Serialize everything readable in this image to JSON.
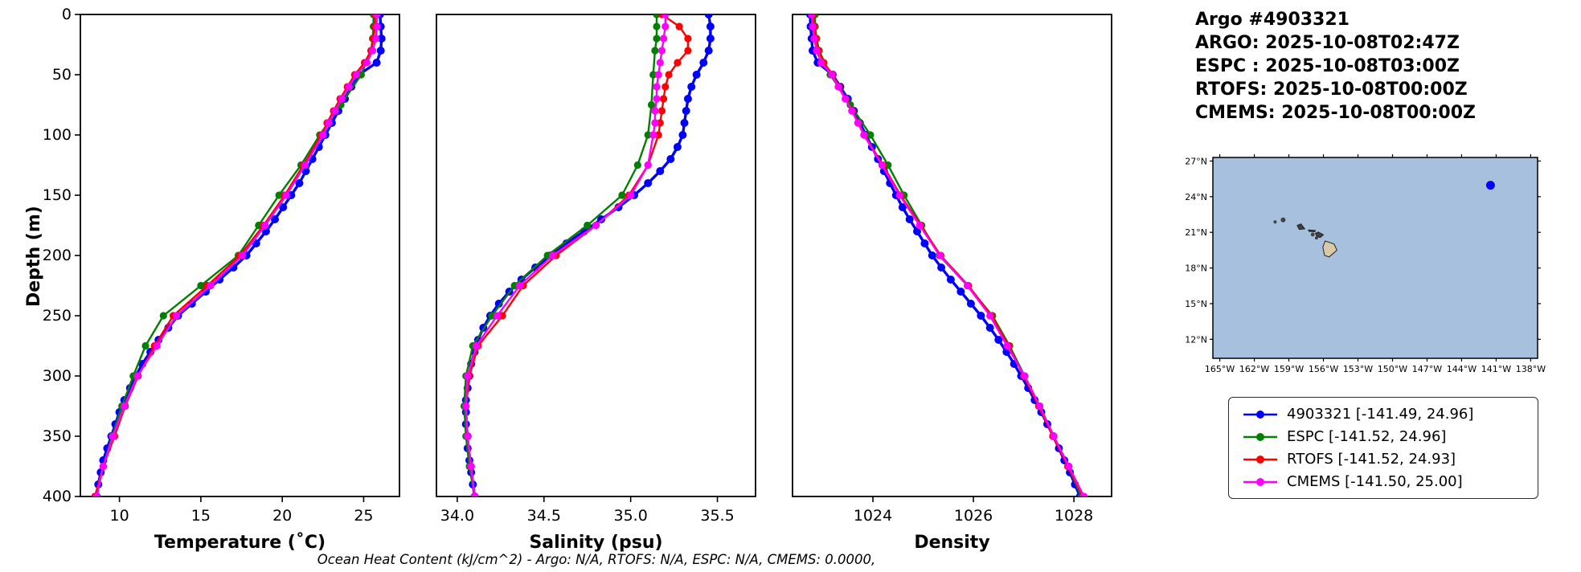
{
  "header": {
    "title": "Argo #4903321",
    "lines": [
      "ARGO: 2025-10-08T02:47Z",
      "ESPC : 2025-10-08T03:00Z",
      "RTOFS: 2025-10-08T00:00Z",
      "CMEMS: 2025-10-08T00:00Z"
    ]
  },
  "caption": "Ocean Heat Content (kJ/cm^2) - Argo: N/A,  RTOFS: N/A,  ESPC: N/A,  CMEMS: 0.0000,",
  "colors": {
    "argo": "#0000ff",
    "espc": "#008000",
    "rtofs": "#ff0000",
    "cmems": "#ff00ff"
  },
  "legend": {
    "entries": [
      {
        "name": "4903321",
        "label": "4903321 [-141.49, 24.96]",
        "color": "#0000ff"
      },
      {
        "name": "ESPC",
        "label": "ESPC [-141.52, 24.96]",
        "color": "#008000"
      },
      {
        "name": "RTOFS",
        "label": "RTOFS [-141.52, 24.93]",
        "color": "#ff0000"
      },
      {
        "name": "CMEMS",
        "label": "CMEMS [-141.50, 25.00]",
        "color": "#ff00ff"
      }
    ]
  },
  "chart_data": {
    "type": "line",
    "ylabel": "Depth (m)",
    "ylim": [
      0,
      400
    ],
    "y_inverted": true,
    "yticks": [
      0,
      50,
      100,
      150,
      200,
      250,
      300,
      350,
      400
    ],
    "ytick_labels": [
      "0",
      "50",
      "100",
      "150",
      "200",
      "250",
      "300",
      "350",
      "400"
    ],
    "grid": false,
    "legend_position": "below-map-right",
    "charts": [
      {
        "name": "temperature-profile",
        "xlabel": "Temperature (˚C)",
        "field": "temperature",
        "xlim": [
          7.6,
          27.2
        ],
        "xticks": [
          10,
          15,
          20,
          25
        ],
        "xtick_labels": [
          "10",
          "15",
          "20",
          "25"
        ]
      },
      {
        "name": "salinity-profile",
        "xlabel": "Salinity (psu)",
        "field": "salinity",
        "xlim": [
          33.88,
          35.72
        ],
        "xticks": [
          34.0,
          34.5,
          35.0,
          35.5
        ],
        "xtick_labels": [
          "34.0",
          "34.5",
          "35.0",
          "35.5"
        ]
      },
      {
        "name": "density-profile",
        "xlabel": "Density",
        "field": "density",
        "xlim": [
          1022.4,
          1028.75
        ],
        "xticks": [
          1024,
          1026,
          1028
        ],
        "xtick_labels": [
          "1024",
          "1026",
          "1028"
        ]
      }
    ],
    "series": [
      {
        "name": "4903321",
        "color": "#0000ff",
        "line_width": 3.4,
        "marker_size": 5,
        "depths": [
          0,
          10,
          20,
          30,
          40,
          50,
          60,
          70,
          80,
          90,
          100,
          110,
          120,
          130,
          140,
          150,
          160,
          170,
          180,
          190,
          200,
          210,
          220,
          230,
          240,
          250,
          260,
          270,
          280,
          290,
          300,
          310,
          320,
          330,
          340,
          350,
          360,
          370,
          380,
          390,
          400
        ],
        "temperature": [
          26.0,
          26.05,
          26.1,
          26.05,
          25.8,
          24.7,
          24.25,
          23.85,
          23.45,
          23.05,
          22.65,
          22.25,
          21.85,
          21.45,
          21.05,
          20.55,
          20.05,
          19.55,
          19.0,
          18.4,
          17.8,
          17.0,
          16.15,
          15.3,
          14.45,
          13.6,
          13.0,
          12.4,
          11.9,
          11.4,
          11.0,
          10.65,
          10.3,
          10.0,
          9.75,
          9.5,
          9.25,
          9.0,
          8.85,
          8.7,
          8.6
        ],
        "salinity": [
          35.45,
          35.46,
          35.46,
          35.45,
          35.42,
          35.38,
          35.35,
          35.33,
          35.32,
          35.31,
          35.3,
          35.27,
          35.23,
          35.17,
          35.1,
          35.02,
          34.93,
          34.83,
          34.73,
          34.63,
          34.54,
          34.45,
          34.37,
          34.3,
          34.24,
          34.19,
          34.15,
          34.12,
          34.1,
          34.08,
          34.07,
          34.06,
          34.05,
          34.05,
          34.05,
          34.06,
          34.06,
          34.07,
          34.08,
          34.09,
          34.1
        ],
        "density": [
          1022.75,
          1022.76,
          1022.78,
          1022.8,
          1022.9,
          1023.2,
          1023.35,
          1023.5,
          1023.62,
          1023.74,
          1023.86,
          1023.98,
          1024.1,
          1024.22,
          1024.34,
          1024.46,
          1024.59,
          1024.73,
          1024.88,
          1025.03,
          1025.18,
          1025.36,
          1025.55,
          1025.75,
          1025.95,
          1026.15,
          1026.33,
          1026.5,
          1026.66,
          1026.81,
          1026.95,
          1027.09,
          1027.22,
          1027.35,
          1027.47,
          1027.59,
          1027.7,
          1027.81,
          1027.92,
          1028.02,
          1028.12
        ]
      },
      {
        "name": "ESPC",
        "color": "#008000",
        "line_width": 2.4,
        "marker_size": 4.6,
        "depths": [
          0,
          10,
          20,
          30,
          50,
          75,
          100,
          125,
          150,
          175,
          200,
          225,
          250,
          275,
          300,
          325,
          350,
          375,
          400
        ],
        "temperature": [
          25.6,
          25.6,
          25.55,
          25.45,
          24.85,
          23.6,
          22.3,
          21.15,
          19.8,
          18.55,
          17.3,
          15.0,
          12.7,
          11.6,
          10.85,
          10.15,
          9.55,
          9.0,
          8.5
        ],
        "salinity": [
          35.15,
          35.15,
          35.15,
          35.14,
          35.13,
          35.12,
          35.1,
          35.04,
          34.95,
          34.75,
          34.52,
          34.33,
          34.2,
          34.09,
          34.05,
          34.04,
          34.05,
          34.07,
          34.1
        ],
        "density": [
          1022.85,
          1022.85,
          1022.88,
          1022.93,
          1023.15,
          1023.55,
          1023.95,
          1024.3,
          1024.62,
          1024.97,
          1025.32,
          1025.88,
          1026.38,
          1026.72,
          1027.02,
          1027.32,
          1027.6,
          1027.88,
          1028.15
        ]
      },
      {
        "name": "RTOFS",
        "color": "#ff0000",
        "line_width": 2.4,
        "marker_size": 4.6,
        "depths": [
          0,
          10,
          20,
          30,
          40,
          50,
          60,
          70,
          80,
          90,
          100,
          125,
          150,
          175,
          200,
          225,
          250,
          275,
          300,
          325,
          350,
          375,
          400
        ],
        "temperature": [
          25.7,
          25.7,
          25.6,
          25.45,
          25.05,
          24.45,
          24.0,
          23.55,
          23.15,
          22.75,
          22.4,
          21.3,
          20.15,
          18.85,
          17.4,
          15.4,
          13.3,
          12.15,
          11.15,
          10.35,
          9.7,
          9.0,
          8.5
        ],
        "salinity": [
          35.18,
          35.28,
          35.33,
          35.33,
          35.27,
          35.22,
          35.2,
          35.19,
          35.18,
          35.17,
          35.16,
          35.1,
          34.99,
          34.8,
          34.57,
          34.38,
          34.26,
          34.12,
          34.07,
          34.05,
          34.06,
          34.08,
          34.1
        ],
        "density": [
          1022.8,
          1022.83,
          1022.87,
          1022.92,
          1023.02,
          1023.2,
          1023.33,
          1023.46,
          1023.59,
          1023.71,
          1023.83,
          1024.2,
          1024.55,
          1024.95,
          1025.35,
          1025.9,
          1026.36,
          1026.7,
          1027.0,
          1027.3,
          1027.58,
          1027.88,
          1028.18
        ]
      },
      {
        "name": "CMEMS",
        "color": "#ff00ff",
        "line_width": 2.4,
        "marker_size": 4.6,
        "depths": [
          0,
          10,
          20,
          30,
          40,
          50,
          60,
          70,
          80,
          90,
          100,
          125,
          150,
          175,
          200,
          225,
          250,
          275,
          300,
          325,
          350,
          375,
          400
        ],
        "temperature": [
          25.8,
          25.82,
          25.75,
          25.55,
          25.2,
          24.55,
          24.1,
          23.65,
          23.25,
          22.85,
          22.5,
          21.4,
          20.25,
          18.95,
          17.55,
          15.6,
          13.5,
          12.3,
          11.1,
          10.3,
          9.6,
          9.0,
          8.6
        ],
        "salinity": [
          35.2,
          35.2,
          35.19,
          35.18,
          35.17,
          35.16,
          35.15,
          35.15,
          35.14,
          35.14,
          35.13,
          35.1,
          35.0,
          34.8,
          34.55,
          34.36,
          34.23,
          34.11,
          34.06,
          34.05,
          34.06,
          34.08,
          34.1
        ],
        "density": [
          1022.78,
          1022.8,
          1022.83,
          1022.88,
          1022.97,
          1023.18,
          1023.31,
          1023.45,
          1023.58,
          1023.7,
          1023.82,
          1024.18,
          1024.53,
          1024.93,
          1025.33,
          1025.88,
          1026.33,
          1026.67,
          1027.02,
          1027.32,
          1027.6,
          1027.9,
          1028.2
        ]
      }
    ],
    "map": {
      "lon_range": [
        -165.6,
        -137.4
      ],
      "lat_range": [
        10.4,
        27.3
      ],
      "lon_ticks": [
        -165,
        -162,
        -159,
        -156,
        -153,
        -150,
        -147,
        -144,
        -141,
        -138
      ],
      "lon_tick_labels": [
        "165°W",
        "162°W",
        "159°W",
        "156°W",
        "153°W",
        "150°W",
        "147°W",
        "144°W",
        "141°W",
        "138°W"
      ],
      "lat_ticks": [
        12,
        15,
        18,
        21,
        24,
        27
      ],
      "lat_tick_labels": [
        "12°N",
        "15°N",
        "18°N",
        "21°N",
        "24°N",
        "27°N"
      ],
      "ocean_color": "#a6c0de",
      "land_color": "#d9c9a6",
      "island_color": "#404040",
      "float_marker": {
        "lon": -141.49,
        "lat": 24.96,
        "color": "#0000ff"
      },
      "islands": [
        {
          "name": "niihau",
          "type": "dot",
          "lon": -160.2,
          "lat": 21.88,
          "r": 2
        },
        {
          "name": "kauai",
          "type": "dot",
          "lon": -159.5,
          "lat": 22.05,
          "r": 3
        },
        {
          "name": "oahu",
          "type": "poly",
          "pts": [
            [
              -158.28,
              21.58
            ],
            [
              -157.95,
              21.71
            ],
            [
              -157.62,
              21.3
            ],
            [
              -158.1,
              21.24
            ]
          ]
        },
        {
          "name": "molokai",
          "type": "poly",
          "pts": [
            [
              -157.3,
              21.2
            ],
            [
              -156.7,
              21.16
            ],
            [
              -156.75,
              21.04
            ],
            [
              -157.25,
              21.08
            ]
          ]
        },
        {
          "name": "lanai",
          "type": "dot",
          "lon": -156.93,
          "lat": 20.82,
          "r": 2.4
        },
        {
          "name": "maui",
          "type": "poly",
          "pts": [
            [
              -156.7,
              20.92
            ],
            [
              -156.45,
              21.03
            ],
            [
              -156.0,
              20.8
            ],
            [
              -156.27,
              20.57
            ],
            [
              -156.55,
              20.62
            ]
          ]
        },
        {
          "name": "kahoolawe",
          "type": "dot",
          "lon": -156.6,
          "lat": 20.53,
          "r": 2
        },
        {
          "name": "hawaii",
          "type": "poly",
          "big": true,
          "pts": [
            [
              -155.9,
              19.05
            ],
            [
              -155.5,
              18.93
            ],
            [
              -154.82,
              19.5
            ],
            [
              -155.08,
              20.02
            ],
            [
              -155.85,
              20.27
            ],
            [
              -156.05,
              19.75
            ]
          ]
        }
      ]
    }
  }
}
